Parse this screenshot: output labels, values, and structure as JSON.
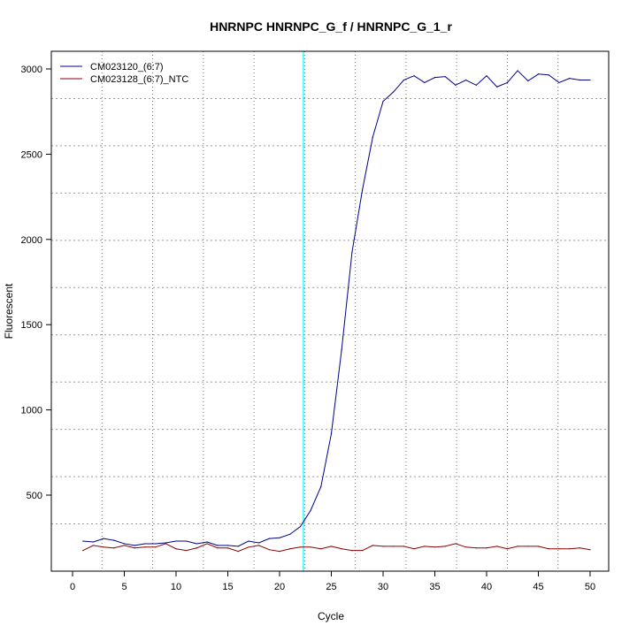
{
  "chart_data": {
    "type": "line",
    "title": "HNRNPC  HNRNPC_G_f / HNRNPC_G_1_r",
    "xlabel": "Cycle",
    "ylabel": "Fluorescent",
    "xlim": [
      -2,
      52
    ],
    "ylim": [
      60,
      3100
    ],
    "xticks": [
      0,
      5,
      10,
      15,
      20,
      25,
      30,
      35,
      40,
      45,
      50
    ],
    "yticks": [
      500,
      1000,
      1500,
      2000,
      2500,
      3000
    ],
    "grid": true,
    "legend_position": "top-left",
    "threshold_cycle_marker": 22.3,
    "marker_color": "#00ffff",
    "x": [
      1,
      2,
      3,
      4,
      5,
      6,
      7,
      8,
      9,
      10,
      11,
      12,
      13,
      14,
      15,
      16,
      17,
      18,
      19,
      20,
      21,
      22,
      23,
      24,
      25,
      26,
      27,
      28,
      29,
      30,
      31,
      32,
      33,
      34,
      35,
      36,
      37,
      38,
      39,
      40,
      41,
      42,
      43,
      44,
      45,
      46,
      47,
      48,
      49,
      50
    ],
    "series": [
      {
        "name": "CM023120_(6:7)",
        "color": "#00008b",
        "values": [
          230,
          225,
          245,
          235,
          215,
          205,
          215,
          215,
          220,
          230,
          230,
          215,
          225,
          205,
          205,
          200,
          230,
          220,
          245,
          250,
          270,
          315,
          410,
          550,
          860,
          1355,
          1925,
          2290,
          2600,
          2810,
          2865,
          2935,
          2960,
          2920,
          2950,
          2955,
          2905,
          2935,
          2905,
          2960,
          2895,
          2920,
          2990,
          2930,
          2970,
          2965,
          2920,
          2945,
          2935,
          2935
        ]
      },
      {
        "name": "CM023128_(6:7)_NTC",
        "color": "#8b0000",
        "values": [
          175,
          205,
          195,
          190,
          205,
          190,
          195,
          195,
          215,
          185,
          175,
          190,
          215,
          190,
          190,
          170,
          195,
          205,
          180,
          170,
          185,
          195,
          195,
          185,
          200,
          185,
          175,
          175,
          205,
          200,
          200,
          200,
          185,
          200,
          195,
          200,
          215,
          195,
          190,
          190,
          200,
          185,
          200,
          200,
          200,
          185,
          185,
          185,
          190,
          180
        ]
      }
    ]
  }
}
